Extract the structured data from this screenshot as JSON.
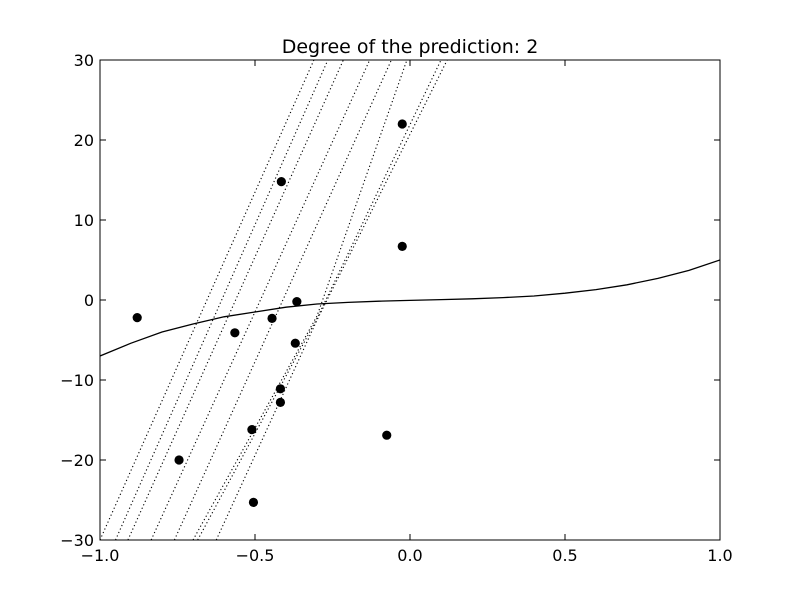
{
  "chart_data": {
    "type": "scatter",
    "title": "Degree of the prediction: 2",
    "xlabel": "",
    "ylabel": "",
    "xlim": [
      -1.0,
      1.0
    ],
    "ylim": [
      -30,
      30
    ],
    "x_ticks": [
      -1.0,
      -0.5,
      0.0,
      0.5,
      1.0
    ],
    "x_tick_labels": [
      "−1.0",
      "−0.5",
      "0.0",
      "0.5",
      "1.0"
    ],
    "y_ticks": [
      -30,
      -20,
      -10,
      0,
      10,
      20,
      30
    ],
    "y_tick_labels": [
      "−30",
      "−20",
      "−10",
      "0",
      "10",
      "20",
      "30"
    ],
    "grid": false,
    "legend": "none",
    "colors": {
      "line": "#000000",
      "points": "#000000",
      "frame": "#000000"
    },
    "points": [
      {
        "x": -0.88,
        "y": -2.2
      },
      {
        "x": -0.745,
        "y": -20.0
      },
      {
        "x": -0.565,
        "y": -4.1
      },
      {
        "x": -0.51,
        "y": -16.2
      },
      {
        "x": -0.505,
        "y": -25.3
      },
      {
        "x": -0.445,
        "y": -2.3
      },
      {
        "x": -0.415,
        "y": 14.8
      },
      {
        "x": -0.418,
        "y": -11.1
      },
      {
        "x": -0.418,
        "y": -12.8
      },
      {
        "x": -0.37,
        "y": -5.4
      },
      {
        "x": -0.365,
        "y": -0.2
      },
      {
        "x": -0.075,
        "y": -16.9
      },
      {
        "x": -0.025,
        "y": 22.0
      },
      {
        "x": -0.025,
        "y": 6.7
      }
    ],
    "curve": {
      "style": "solid",
      "x": [
        -1.0,
        -0.9,
        -0.8,
        -0.7,
        -0.6,
        -0.5,
        -0.4,
        -0.3,
        -0.2,
        -0.1,
        0.0,
        0.1,
        0.2,
        0.3,
        0.4,
        0.5,
        0.6,
        0.7,
        0.8,
        0.9,
        1.0
      ],
      "y": [
        -7.0,
        -5.4,
        -4.0,
        -3.0,
        -2.1,
        -1.5,
        -0.9,
        -0.5,
        -0.3,
        -0.15,
        -0.05,
        0.05,
        0.15,
        0.3,
        0.5,
        0.85,
        1.3,
        1.9,
        2.7,
        3.7,
        5.0
      ]
    },
    "dotted_lines": [
      {
        "x": [
          -1.0,
          -0.31
        ],
        "y": [
          -30,
          30
        ]
      },
      {
        "x": [
          -0.95,
          -0.265
        ],
        "y": [
          -30,
          30
        ]
      },
      {
        "x": [
          -0.91,
          -0.215
        ],
        "y": [
          -30,
          30
        ]
      },
      {
        "x": [
          -0.835,
          -0.13
        ],
        "y": [
          -30,
          30
        ]
      },
      {
        "x": [
          -0.76,
          -0.06
        ],
        "y": [
          -30,
          30
        ]
      },
      {
        "x": [
          -0.7,
          -0.3,
          -0.01
        ],
        "y": [
          -30,
          -2.0,
          30
        ]
      },
      {
        "x": [
          -0.685,
          -0.3,
          0.1
        ],
        "y": [
          -30,
          -2.3,
          30
        ]
      },
      {
        "x": [
          -0.625,
          -0.3,
          0.12
        ],
        "y": [
          -30,
          -2.5,
          30
        ]
      }
    ]
  }
}
